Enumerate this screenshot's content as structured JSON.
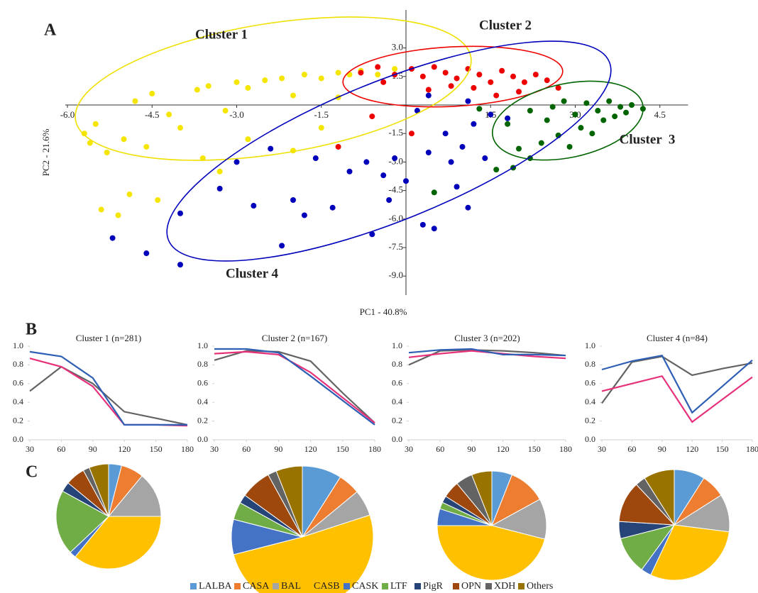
{
  "panel_labels": [
    "A",
    "B",
    "C"
  ],
  "legend": {
    "categories": [
      "LALBA",
      "CASA",
      "BAL",
      "CASB",
      "CASK",
      "LTF",
      "PigR",
      "OPN",
      "XDH",
      "Others"
    ],
    "colors": [
      "#5b9bd5",
      "#ed7d31",
      "#a5a5a5",
      "#ffc000",
      "#4472c4",
      "#70ad47",
      "#264478",
      "#9e480e",
      "#636363",
      "#997300"
    ]
  },
  "chart_data": [
    {
      "type": "scatter",
      "x_label": "PC1 - 40.8%",
      "y_label": "PC2 - 21.6%",
      "xlim": [
        -6,
        5
      ],
      "ylim": [
        -10,
        5
      ],
      "xticks": [
        {
          "value": -6,
          "label": "-6.0"
        },
        {
          "value": -4.5,
          "label": "-4.5"
        },
        {
          "value": -3,
          "label": "-3.0"
        },
        {
          "value": -1.5,
          "label": "-1.5"
        },
        {
          "value": 1.5,
          "label": "1.5"
        },
        {
          "value": 3,
          "label": "3.0"
        },
        {
          "value": 4.5,
          "label": "4.5"
        }
      ],
      "yticks": [
        {
          "value": 3,
          "label": "3.0"
        },
        {
          "value": 1.5,
          "label": "1.5"
        },
        {
          "value": -1.5,
          "label": "-1.5"
        },
        {
          "value": -3,
          "label": "-3.0"
        },
        {
          "value": -4.5,
          "label": "-4.5"
        },
        {
          "value": -6,
          "label": "-6.0"
        },
        {
          "value": -7.5,
          "label": "-7.5"
        },
        {
          "value": -9,
          "label": "-9.0"
        }
      ],
      "series": [
        {
          "name": "Cluster 1",
          "color": "#f5e600",
          "x": [
            -5.7,
            -5.6,
            -5.5,
            -5.3,
            -5.0,
            -4.8,
            -4.5,
            -4.2,
            -4.0,
            -3.7,
            -3.5,
            -3.2,
            -3.0,
            -2.8,
            -2.5,
            -2.2,
            -2.0,
            -1.8,
            -1.5,
            -1.2,
            -1.0,
            -0.8,
            -0.5,
            -2.8,
            -3.3,
            -4.4,
            -5.1,
            -5.4,
            -4.9,
            -1.5,
            -2.0,
            -3.6,
            -4.6,
            -0.2,
            -1.2
          ],
          "values": [
            -1.5,
            -2.0,
            -1.0,
            -2.5,
            -1.8,
            0.2,
            0.6,
            -0.5,
            -1.2,
            0.8,
            1.0,
            -0.3,
            1.2,
            0.9,
            1.3,
            1.4,
            0.5,
            1.6,
            1.4,
            1.7,
            1.6,
            1.8,
            1.6,
            -1.8,
            -3.5,
            -5.0,
            -5.8,
            -5.5,
            -4.7,
            -1.2,
            -2.4,
            -2.8,
            -2.2,
            1.9,
            0.4
          ]
        },
        {
          "name": "Cluster 2",
          "color": "#ee0000",
          "x": [
            -0.8,
            -0.5,
            -0.2,
            0.1,
            0.3,
            0.5,
            0.7,
            0.9,
            1.1,
            1.3,
            1.5,
            1.7,
            1.9,
            2.1,
            2.3,
            2.5,
            2.7,
            1.6,
            0.4,
            -0.4,
            0.8,
            2.0,
            0.1,
            -1.2,
            -0.6,
            1.2
          ],
          "values": [
            1.7,
            2.0,
            1.6,
            1.9,
            1.5,
            2.0,
            1.7,
            1.4,
            1.9,
            1.6,
            1.2,
            1.8,
            1.5,
            1.2,
            1.6,
            1.3,
            0.9,
            0.5,
            0.8,
            1.2,
            1.0,
            0.7,
            -1.5,
            -2.2,
            -0.6,
            0.9
          ]
        },
        {
          "name": "Cluster  3",
          "color": "#006400",
          "x": [
            2.2,
            2.5,
            2.8,
            3.0,
            3.2,
            3.4,
            3.6,
            3.8,
            4.0,
            4.2,
            3.5,
            3.1,
            2.7,
            2.4,
            2.0,
            1.6,
            1.9,
            2.9,
            3.3,
            3.7,
            2.6,
            3.9,
            1.3,
            0.5,
            2.2,
            1.8
          ],
          "values": [
            -0.3,
            -0.8,
            0.2,
            -0.5,
            0.1,
            -0.3,
            0.2,
            -0.1,
            0.0,
            -0.2,
            -0.8,
            -1.2,
            -1.6,
            -2.0,
            -2.3,
            -3.4,
            -3.3,
            -2.2,
            -1.5,
            -0.6,
            -0.1,
            -0.4,
            -0.2,
            -4.6,
            -2.8,
            -1.0
          ]
        },
        {
          "name": "Cluster 4",
          "color": "#0000bb",
          "x": [
            -5.2,
            -4.6,
            -4.0,
            -4.0,
            -3.3,
            -3.0,
            -2.7,
            -2.4,
            -2.0,
            -1.6,
            -1.8,
            -1.3,
            -1.0,
            -0.7,
            -0.4,
            -0.3,
            -2.2,
            -0.6,
            0.3,
            0.5,
            0.8,
            1.0,
            1.2,
            1.5,
            1.1,
            0.4,
            0.7,
            1.1,
            0.4,
            0.0,
            0.9,
            1.4,
            1.8,
            0.2,
            -0.2
          ],
          "values": [
            -7.0,
            -7.8,
            -8.4,
            -5.7,
            -4.4,
            -3.0,
            -5.3,
            -2.3,
            -5.0,
            -2.8,
            -5.8,
            -5.4,
            -3.5,
            -3.0,
            -3.7,
            -5.0,
            -7.4,
            -6.8,
            -6.3,
            -6.5,
            -3.0,
            -2.2,
            -1.0,
            -0.5,
            0.2,
            0.5,
            -1.5,
            -5.4,
            -2.5,
            -4.0,
            -4.3,
            -2.8,
            -0.7,
            -0.3,
            -2.8
          ]
        }
      ]
    },
    {
      "type": "line",
      "title": "Cluster 1 (n=281)",
      "x": [
        30,
        60,
        90,
        120,
        150,
        180
      ],
      "xlim": [
        30,
        180
      ],
      "xticks": [
        30,
        60,
        90,
        120,
        150,
        180
      ],
      "ylim": [
        0,
        1
      ],
      "yticks": [
        {
          "value": 0,
          "label": "0.0"
        },
        {
          "value": 0.2,
          "label": "0.2"
        },
        {
          "value": 0.4,
          "label": "0.4"
        },
        {
          "value": 0.6,
          "label": "0.6"
        },
        {
          "value": 0.8,
          "label": "0.8"
        },
        {
          "value": 1,
          "label": "1.0"
        }
      ],
      "series": [
        {
          "color": "#636363",
          "values": [
            0.52,
            0.78,
            0.6,
            0.3,
            0.23,
            0.16
          ]
        },
        {
          "color": "#e6317a",
          "values": [
            0.87,
            0.78,
            0.57,
            0.16,
            0.16,
            0.15
          ]
        },
        {
          "color": "#2e5fb5",
          "values": [
            0.94,
            0.89,
            0.66,
            0.16,
            0.16,
            0.16
          ]
        }
      ]
    },
    {
      "type": "line",
      "title": "Cluster 2 (n=167)",
      "x": [
        30,
        60,
        90,
        120,
        150,
        180
      ],
      "xlim": [
        30,
        180
      ],
      "xticks": [
        30,
        60,
        90,
        120,
        150,
        180
      ],
      "ylim": [
        0,
        1
      ],
      "yticks": [
        {
          "value": 0,
          "label": "0.0"
        },
        {
          "value": 0.2,
          "label": "0.2"
        },
        {
          "value": 0.4,
          "label": "0.4"
        },
        {
          "value": 0.6,
          "label": "0.6"
        },
        {
          "value": 0.8,
          "label": "0.8"
        },
        {
          "value": 1,
          "label": "1.0"
        }
      ],
      "series": [
        {
          "color": "#636363",
          "values": [
            0.85,
            0.95,
            0.94,
            0.84,
            0.5,
            0.18
          ]
        },
        {
          "color": "#e6317a",
          "values": [
            0.92,
            0.94,
            0.91,
            0.72,
            0.45,
            0.18
          ]
        },
        {
          "color": "#2e5fb5",
          "values": [
            0.97,
            0.97,
            0.93,
            0.68,
            0.42,
            0.16
          ]
        }
      ]
    },
    {
      "type": "line",
      "title": "Cluster 3 (n=202)",
      "x": [
        30,
        60,
        90,
        120,
        150,
        180
      ],
      "xlim": [
        30,
        180
      ],
      "xticks": [
        30,
        60,
        90,
        120,
        150,
        180
      ],
      "ylim": [
        0,
        1
      ],
      "yticks": [
        {
          "value": 0,
          "label": "0.0"
        },
        {
          "value": 0.2,
          "label": "0.2"
        },
        {
          "value": 0.4,
          "label": "0.4"
        },
        {
          "value": 0.6,
          "label": "0.6"
        },
        {
          "value": 0.8,
          "label": "0.8"
        },
        {
          "value": 1,
          "label": "1.0"
        }
      ],
      "series": [
        {
          "color": "#636363",
          "values": [
            0.8,
            0.95,
            0.96,
            0.95,
            0.93,
            0.9
          ]
        },
        {
          "color": "#e6317a",
          "values": [
            0.88,
            0.92,
            0.95,
            0.92,
            0.89,
            0.87
          ]
        },
        {
          "color": "#2e5fb5",
          "values": [
            0.93,
            0.96,
            0.97,
            0.91,
            0.91,
            0.9
          ]
        }
      ]
    },
    {
      "type": "line",
      "title": "Cluster 4 (n=84)",
      "x": [
        30,
        60,
        90,
        120,
        150,
        180
      ],
      "xlim": [
        30,
        180
      ],
      "xticks": [
        30,
        60,
        90,
        120,
        150,
        180
      ],
      "ylim": [
        0,
        1
      ],
      "yticks": [
        {
          "value": 0,
          "label": "0.0"
        },
        {
          "value": 0.2,
          "label": "0.2"
        },
        {
          "value": 0.4,
          "label": "0.4"
        },
        {
          "value": 0.6,
          "label": "0.6"
        },
        {
          "value": 0.8,
          "label": "0.8"
        },
        {
          "value": 1,
          "label": "1.0"
        }
      ],
      "series": [
        {
          "color": "#636363",
          "values": [
            0.39,
            0.83,
            0.89,
            0.69,
            0.76,
            0.82
          ]
        },
        {
          "color": "#e6317a",
          "values": [
            0.52,
            0.6,
            0.68,
            0.19,
            0.43,
            0.67
          ]
        },
        {
          "color": "#2e5fb5",
          "values": [
            0.75,
            0.84,
            0.9,
            0.29,
            0.57,
            0.85
          ]
        }
      ]
    },
    {
      "type": "pie",
      "values": [
        4,
        7,
        14,
        36,
        2,
        20,
        3,
        6,
        2,
        6
      ]
    },
    {
      "type": "pie",
      "values": [
        9,
        5,
        6,
        51,
        8,
        4,
        2,
        7,
        2,
        6
      ]
    },
    {
      "type": "pie",
      "values": [
        6,
        11,
        12,
        46,
        5,
        2,
        2,
        5,
        5,
        6
      ]
    },
    {
      "type": "pie",
      "values": [
        9,
        7,
        11,
        30,
        3,
        11,
        5,
        12,
        3,
        9
      ]
    }
  ]
}
